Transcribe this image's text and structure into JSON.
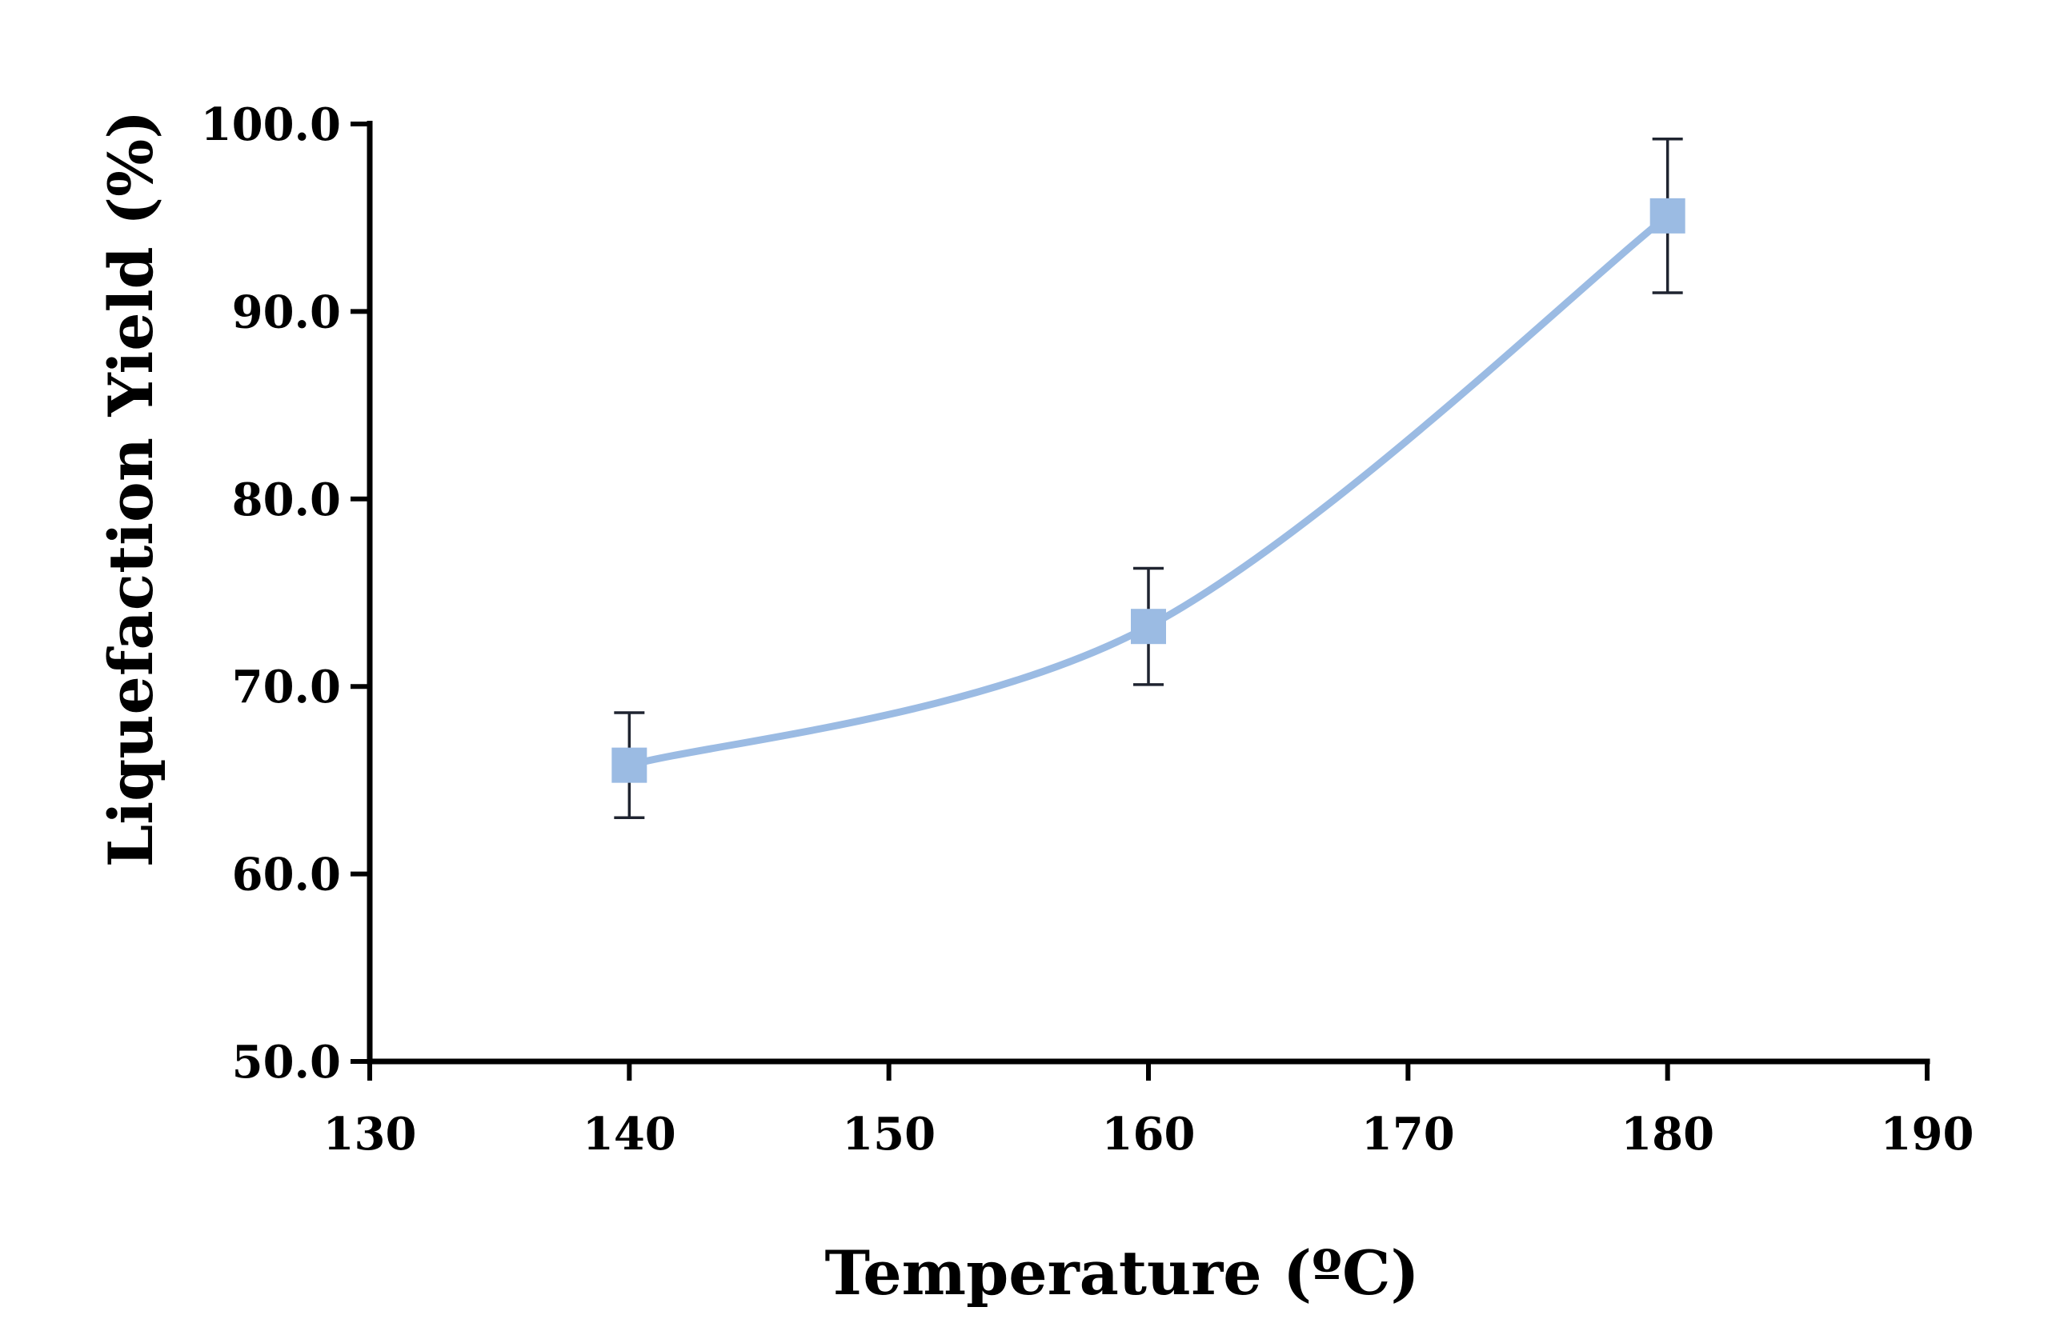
{
  "chart_data": {
    "type": "line",
    "title": "",
    "xlabel": "Temperature (ºC)",
    "ylabel": "Liquefaction Yield (%)",
    "xlim": [
      130,
      190
    ],
    "ylim": [
      50,
      100
    ],
    "x_ticks": [
      "130",
      "140",
      "150",
      "160",
      "170",
      "180",
      "190"
    ],
    "y_ticks": [
      "50.0",
      "60.0",
      "70.0",
      "80.0",
      "90.0",
      "100.0"
    ],
    "grid": false,
    "legend": "none",
    "series": [
      {
        "name": "Liquefaction Yield",
        "color": "#9BBBE3",
        "marker": "square",
        "smooth": true,
        "x": [
          140,
          160,
          180
        ],
        "y": [
          65.8,
          73.2,
          95.1
        ],
        "error": [
          2.8,
          3.1,
          4.1
        ]
      }
    ]
  }
}
